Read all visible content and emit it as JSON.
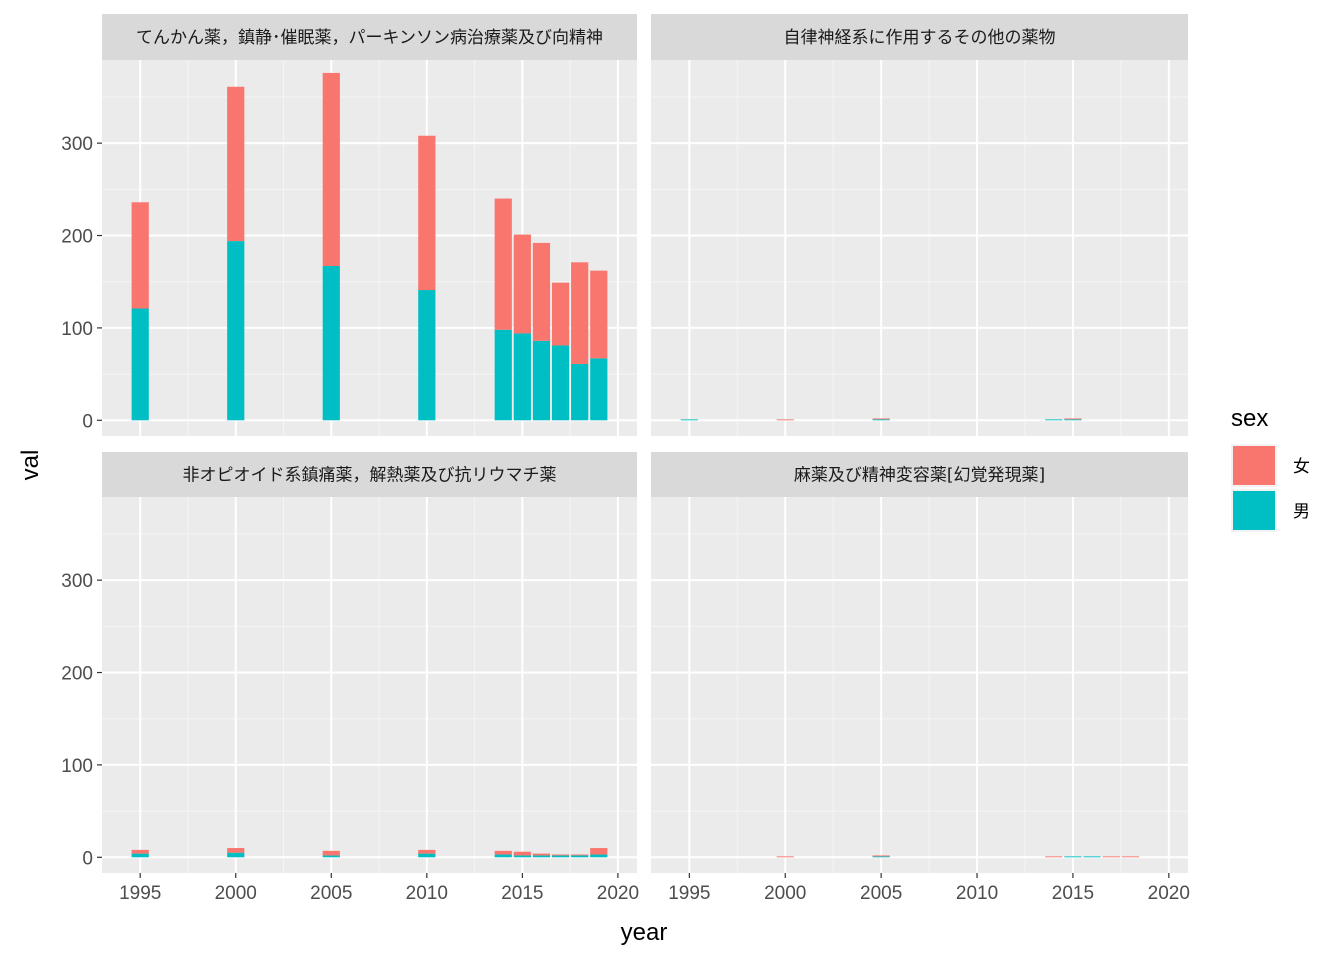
{
  "chart_data": {
    "type": "bar",
    "stacked": true,
    "xlabel": "year",
    "ylabel": "val",
    "xlim": [
      1993,
      2021
    ],
    "ylim": [
      -17,
      390
    ],
    "x_ticks": [
      1995,
      2000,
      2005,
      2010,
      2015,
      2020
    ],
    "y_ticks": [
      0,
      100,
      200,
      300
    ],
    "grid": true,
    "legend": {
      "title": "sex",
      "position": "right",
      "entries": [
        {
          "label": "女",
          "color": "#F8766D"
        },
        {
          "label": "男",
          "color": "#00BFC4"
        }
      ]
    },
    "x": [
      1995,
      2000,
      2005,
      2010,
      2014,
      2015,
      2016,
      2017,
      2018,
      2019
    ],
    "panels": [
      {
        "title": "てんかん薬，鎮静･催眠薬，パーキンソン病治療薬及び向精神",
        "series": [
          {
            "name": "男",
            "values": [
              121,
              194,
              167,
              141,
              98,
              94,
              86,
              81,
              61,
              67
            ]
          },
          {
            "name": "女",
            "values": [
              115,
              167,
              209,
              167,
              142,
              107,
              106,
              68,
              110,
              95
            ]
          }
        ]
      },
      {
        "title": "自律神経系に作用するその他の薬物",
        "series": [
          {
            "name": "男",
            "values": [
              1,
              0,
              1,
              0,
              1,
              1,
              0,
              0,
              0,
              0
            ]
          },
          {
            "name": "女",
            "values": [
              0,
              1,
              1,
              0,
              0,
              1,
              0,
              0,
              0,
              0
            ]
          }
        ]
      },
      {
        "title": "非オピオイド系鎮痛薬，解熱薬及び抗リウマチ薬",
        "series": [
          {
            "name": "男",
            "values": [
              4,
              5,
              2,
              4,
              3,
              2,
              2,
              2,
              2,
              3
            ]
          },
          {
            "name": "女",
            "values": [
              4,
              5,
              5,
              4,
              4,
              4,
              2,
              1,
              1,
              7
            ]
          }
        ]
      },
      {
        "title": "麻薬及び精神変容薬[幻覚発現薬]",
        "series": [
          {
            "name": "男",
            "values": [
              0,
              0,
              1,
              0,
              0,
              1,
              1,
              0,
              0,
              0
            ]
          },
          {
            "name": "女",
            "values": [
              0,
              1,
              1,
              0,
              1,
              0,
              0,
              1,
              1,
              0
            ]
          }
        ]
      }
    ]
  }
}
